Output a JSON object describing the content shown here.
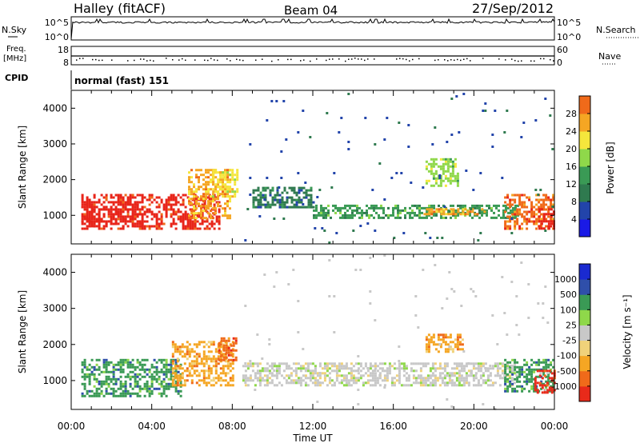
{
  "header": {
    "station": "Halley (fitACF)",
    "beam": "Beam 04",
    "date": "27/Sep/2012"
  },
  "top_panels": {
    "nsky": {
      "label": "N.Sky",
      "ticks": [
        "10^5",
        "10^0"
      ]
    },
    "nsearch": {
      "label": "N.Search",
      "ticks": [
        "10^5",
        "10^0"
      ]
    },
    "freq": {
      "label_line1": "Freq.",
      "label_line2": "[MHz]",
      "ticks": [
        "18",
        "8"
      ]
    },
    "nave": {
      "label": "Nave",
      "ticks": [
        "60",
        "0"
      ]
    },
    "cpid": {
      "label": "CPID",
      "mode": "normal (fast) 151"
    }
  },
  "colors": {
    "power": [
      "#1a1ae6",
      "#2244aa",
      "#2f7a4f",
      "#3a9a55",
      "#8fd84a",
      "#f5e63c",
      "#f5a623",
      "#f06a1a",
      "#e8251a"
    ],
    "velocity": [
      "#e82a1a",
      "#f06a1a",
      "#f5a623",
      "#f0d27a",
      "#c8c8c8",
      "#8fd84a",
      "#3a9a55",
      "#2f4faa",
      "#1a2ad0"
    ]
  },
  "chart_data": [
    {
      "type": "heatmap",
      "name": "power",
      "ylabel": "Slant Range [km]",
      "yticks": [
        1000,
        2000,
        3000,
        4000
      ],
      "ylim": [
        200,
        4500
      ],
      "xlim": [
        0,
        24
      ],
      "colorbar": {
        "label": "Power [dB]",
        "ticks": [
          "4",
          "8",
          "12",
          "16",
          "20",
          "24",
          "28"
        ]
      },
      "regions": [
        {
          "t": [
            0.5,
            7.3
          ],
          "r": [
            600,
            1600
          ],
          "level": 8
        },
        {
          "t": [
            0.5,
            3.5
          ],
          "r": [
            700,
            1400
          ],
          "level": 9
        },
        {
          "t": [
            5.8,
            7.9
          ],
          "r": [
            900,
            2300
          ],
          "level": 6
        },
        {
          "t": [
            7.0,
            8.2
          ],
          "r": [
            1500,
            2300
          ],
          "level": 5
        },
        {
          "t": [
            9.0,
            12.0
          ],
          "r": [
            1200,
            1800
          ],
          "level": 2
        },
        {
          "t": [
            12.0,
            22.2
          ],
          "r": [
            950,
            1300
          ],
          "level": 3
        },
        {
          "t": [
            17.5,
            20.5
          ],
          "r": [
            1000,
            1200
          ],
          "level": 6
        },
        {
          "t": [
            17.6,
            19.2
          ],
          "r": [
            1800,
            2600
          ],
          "level": 4
        },
        {
          "t": [
            21.5,
            24.0
          ],
          "r": [
            600,
            1600
          ],
          "level": 7
        },
        {
          "t": [
            23.2,
            24.0
          ],
          "r": [
            600,
            1200
          ],
          "level": 9
        },
        {
          "t": [
            8.0,
            24.0
          ],
          "r": [
            200,
            4500
          ],
          "level": 1,
          "sparse": true
        }
      ]
    },
    {
      "type": "heatmap",
      "name": "velocity",
      "xlabel": "Time UT",
      "ylabel": "Slant Range [km]",
      "xticks": [
        "00:00",
        "04:00",
        "08:00",
        "12:00",
        "16:00",
        "20:00",
        "00:00"
      ],
      "yticks": [
        1000,
        2000,
        3000,
        4000
      ],
      "ylim": [
        200,
        4500
      ],
      "xlim": [
        0,
        24
      ],
      "colorbar": {
        "label": "Velocity [m s⁻¹]",
        "ticks": [
          "-1000",
          "-500",
          "-100",
          "-25",
          "25",
          "100",
          "500",
          "1000"
        ]
      },
      "regions": [
        {
          "t": [
            0.5,
            5.5
          ],
          "r": [
            600,
            1600
          ],
          "level": 6
        },
        {
          "t": [
            5.0,
            8.0
          ],
          "r": [
            900,
            2100
          ],
          "level": 2
        },
        {
          "t": [
            7.3,
            8.2
          ],
          "r": [
            1600,
            2200
          ],
          "level": 1
        },
        {
          "t": [
            8.5,
            22.0
          ],
          "r": [
            900,
            1500
          ],
          "level": 4
        },
        {
          "t": [
            17.6,
            19.5
          ],
          "r": [
            1800,
            2300
          ],
          "level": 2
        },
        {
          "t": [
            21.5,
            24.0
          ],
          "r": [
            700,
            1600
          ],
          "level": 6
        },
        {
          "t": [
            23.0,
            24.0
          ],
          "r": [
            700,
            1300
          ],
          "level": 0
        },
        {
          "t": [
            8.0,
            24.0
          ],
          "r": [
            200,
            4500
          ],
          "level": 4,
          "sparse": true
        }
      ]
    }
  ]
}
